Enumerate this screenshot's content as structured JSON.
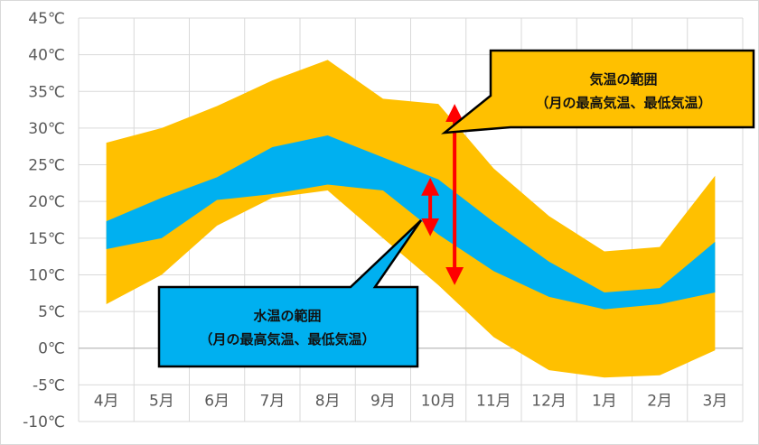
{
  "chart_data": {
    "type": "area",
    "categories": [
      "4月",
      "5月",
      "6月",
      "7月",
      "8月",
      "9月",
      "10月",
      "11月",
      "12月",
      "1月",
      "2月",
      "3月"
    ],
    "yticks": [
      "45℃",
      "40℃",
      "35℃",
      "30℃",
      "25℃",
      "20℃",
      "15℃",
      "10℃",
      "5℃",
      "0℃",
      "-5℃",
      "-10℃"
    ],
    "ylim": [
      -10,
      45
    ],
    "grid": true,
    "series": [
      {
        "role": "air-range",
        "color": "#FFC000",
        "high": [
          28,
          30,
          33,
          36.5,
          39.3,
          34,
          33.3,
          24.5,
          18,
          13.2,
          13.8,
          23.5
        ],
        "low": [
          6,
          10,
          16.7,
          20.5,
          21.5,
          15,
          8.6,
          1.5,
          -3,
          -4,
          -3.7,
          -0.3
        ]
      },
      {
        "role": "water-range",
        "color": "#00B0F0",
        "high": [
          17.3,
          20.5,
          23.3,
          27.4,
          29,
          26,
          23,
          17.2,
          11.8,
          7.6,
          8.2,
          14.5
        ],
        "low": [
          13.5,
          15,
          20.2,
          21,
          22.3,
          21.5,
          15.5,
          10.5,
          7,
          5.3,
          6,
          7.6
        ]
      }
    ],
    "annotations": {
      "air_callout": {
        "line1": "気温の範囲",
        "line2": "（月の最高気温、最低気温）",
        "color": "#FFC000"
      },
      "water_callout": {
        "line1": "水温の範囲",
        "line2": "（月の最高気温、最低気温）",
        "color": "#00B0F0"
      },
      "arrow_color": "#FF0000"
    }
  }
}
